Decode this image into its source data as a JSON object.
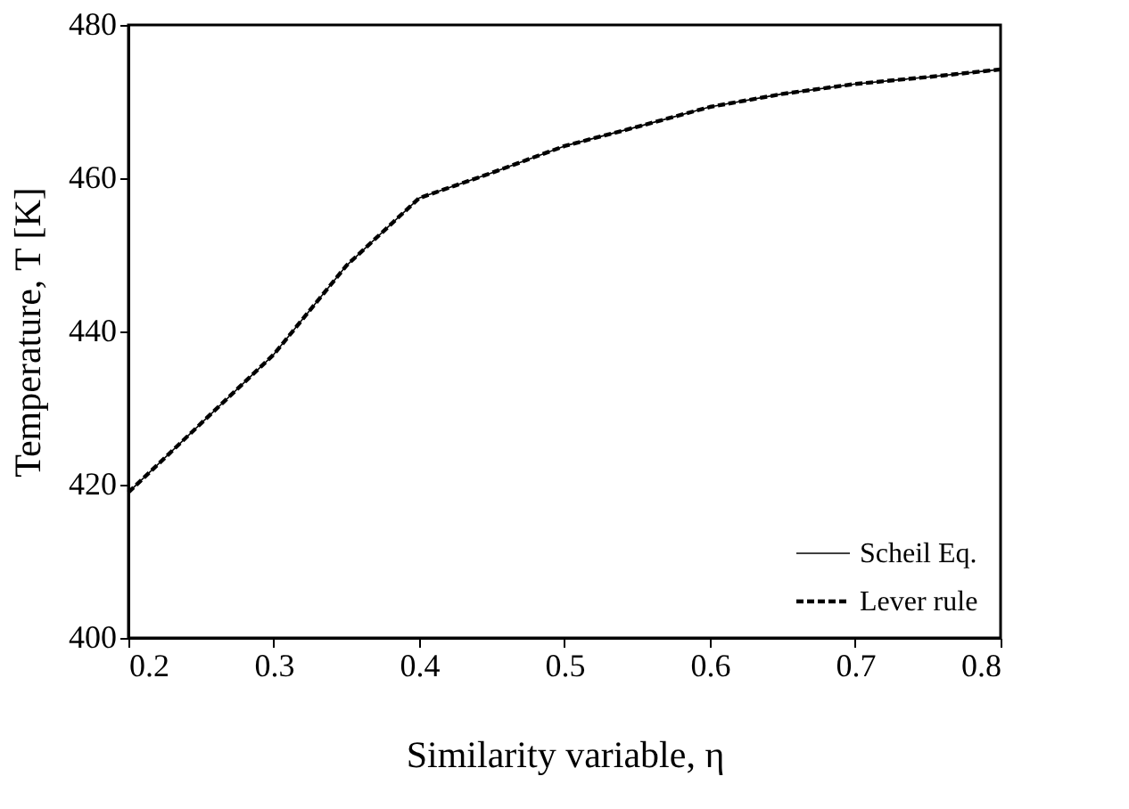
{
  "chart_data": {
    "type": "line",
    "xlabel": "Similarity variable, η",
    "ylabel": "Temperature, T [K]",
    "x": [
      0.2,
      0.25,
      0.3,
      0.35,
      0.4,
      0.45,
      0.5,
      0.55,
      0.6,
      0.65,
      0.7,
      0.75,
      0.8
    ],
    "series": [
      {
        "name": "Scheil Eq.",
        "color": "#000000",
        "line_style": "solid",
        "values": [
          419,
          428,
          437,
          448.6,
          457.4,
          460.7,
          464.2,
          466.7,
          469.3,
          471,
          472.3,
          473.2,
          474.2
        ]
      },
      {
        "name": "Lever rule",
        "color": "#000000",
        "line_style": "dashed",
        "values": [
          419,
          428,
          437,
          448.6,
          457.4,
          460.7,
          464.2,
          466.7,
          469.3,
          471,
          472.3,
          473.2,
          474.2
        ]
      }
    ],
    "xlim": [
      0.2,
      0.8
    ],
    "xticks": [
      0.2,
      0.3,
      0.4,
      0.5,
      0.6,
      0.7,
      0.8
    ],
    "ylim": [
      400,
      480
    ],
    "yticks": [
      400,
      420,
      440,
      460,
      480
    ],
    "grid": false,
    "legend": "bottom right",
    "marker": "none"
  }
}
